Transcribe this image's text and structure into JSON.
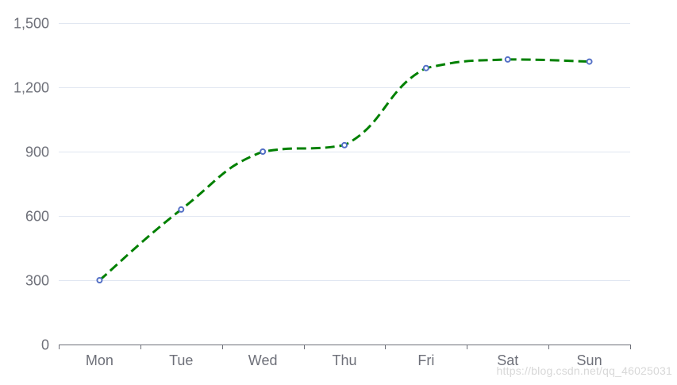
{
  "chart_data": {
    "type": "line",
    "categories": [
      "Mon",
      "Tue",
      "Wed",
      "Thu",
      "Fri",
      "Sat",
      "Sun"
    ],
    "series": [
      {
        "values": [
          300,
          630,
          900,
          930,
          1290,
          1330,
          1320
        ],
        "line_color": "#008000",
        "line_style": "dashed",
        "smooth": true,
        "point_color": "#5470c6"
      }
    ],
    "yticks": [
      0,
      300,
      600,
      900,
      1200,
      1500
    ],
    "ytick_labels": [
      "0",
      "300",
      "600",
      "900",
      "1,200",
      "1,500"
    ],
    "ylim": [
      0,
      1500
    ],
    "grid": true,
    "title": "",
    "xlabel": "",
    "ylabel": "",
    "colors": {
      "grid": "#e0e6f1",
      "axis": "#6e7079",
      "tick_text": "#6e7079"
    }
  },
  "watermark": "https://blog.csdn.net/qq_46025031"
}
